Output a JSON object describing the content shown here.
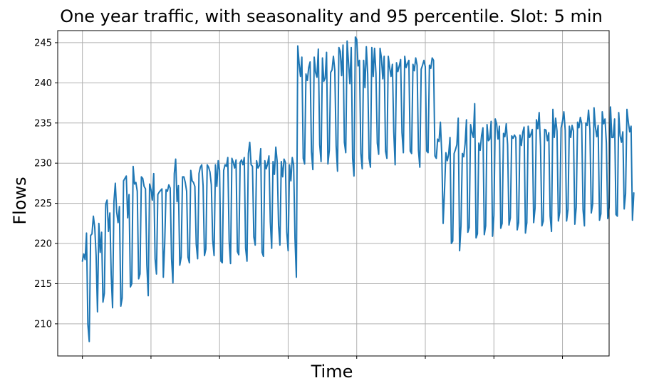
{
  "chart_data": {
    "type": "line",
    "title": "One year traffic, with seasonality and 95 percentile. Slot: 5 min",
    "xlabel": "Time",
    "ylabel": "Flows",
    "ylim": [
      206,
      246.5
    ],
    "xlim": [
      -18,
      384
    ],
    "yticks": [
      210,
      215,
      220,
      225,
      230,
      235,
      240,
      245
    ],
    "xgrid": [
      0,
      50,
      100,
      150,
      200,
      250,
      300,
      350
    ],
    "grid": true,
    "legend": "none",
    "series": [
      {
        "color": "#1f77b4",
        "values": [
          217.8,
          218.7,
          218,
          221.3,
          209.9,
          207.8,
          221,
          221.2,
          223.4,
          222,
          218.5,
          211.5,
          222.5,
          218.9,
          221.4,
          212.7,
          213.8,
          224.9,
          225.4,
          221.5,
          223.8,
          216.1,
          212,
          225.2,
          227.5,
          223.9,
          222.6,
          224.6,
          212.2,
          213.2,
          227.8,
          228.1,
          228.4,
          223.2,
          226.1,
          214.6,
          215,
          229.6,
          227.4,
          227.6,
          226.5,
          215.6,
          216.2,
          228.3,
          228.1,
          227.1,
          226.8,
          217.3,
          213.5,
          227.4,
          226.7,
          225.4,
          228.7,
          218.1,
          216.2,
          226.1,
          226.4,
          226.6,
          226.8,
          215.8,
          220,
          226.7,
          226.5,
          227.3,
          226.9,
          218.1,
          215.1,
          228.7,
          230.5,
          225.2,
          227.2,
          217.3,
          218.3,
          228.3,
          228.3,
          227.6,
          226.5,
          218.3,
          217.6,
          229.1,
          227.8,
          227.6,
          227.1,
          219.9,
          218.1,
          228.7,
          229.5,
          229.8,
          227.2,
          218.5,
          219.3,
          229.8,
          229.5,
          228.9,
          227.3,
          220.4,
          218.5,
          229.8,
          227.1,
          230.3,
          229.1,
          217.8,
          217.6,
          229.1,
          229.8,
          229.6,
          230.7,
          220.3,
          217.5,
          230.6,
          230.1,
          229.4,
          230.4,
          219,
          218.6,
          230.1,
          230.4,
          229.8,
          230.7,
          219.4,
          217.8,
          231.2,
          232.6,
          229.8,
          229.6,
          220.8,
          219.8,
          230.3,
          229.4,
          229.7,
          231.8,
          218.9,
          218.4,
          230.3,
          229.3,
          229.9,
          230.9,
          222.7,
          219.4,
          230.2,
          228.6,
          232,
          230.2,
          222.3,
          219.8,
          230.2,
          228.3,
          230.5,
          230.1,
          221.4,
          219.1,
          229.8,
          227.8,
          230.7,
          229.8,
          220.6,
          215.8,
          244.6,
          242.4,
          240.8,
          243.2,
          230.6,
          229.9,
          241.1,
          240.3,
          241.9,
          242.6,
          231.4,
          229.2,
          243.2,
          241.3,
          240.7,
          244.2,
          232.3,
          230.2,
          243.1,
          240.2,
          240.6,
          243.8,
          229.9,
          231.6,
          241.3,
          241.6,
          243.3,
          241.6,
          232.1,
          229,
          244.4,
          243.9,
          240.9,
          244.7,
          232.6,
          231.3,
          245.2,
          242.5,
          239.9,
          244.4,
          230.6,
          228.4,
          245.7,
          245.4,
          242.1,
          242.8,
          231.2,
          229.3,
          242.8,
          239.4,
          244.5,
          241.1,
          230.6,
          229.5,
          244.4,
          240.8,
          244.3,
          241.2,
          232.5,
          231.1,
          244.3,
          243.1,
          240.5,
          243.3,
          231.5,
          230.6,
          243.3,
          241.9,
          240.8,
          242.3,
          233.9,
          229.8,
          242.5,
          241.4,
          242.1,
          242.9,
          233.8,
          231.3,
          243.3,
          241.9,
          242.4,
          242.8,
          231.5,
          231.2,
          242.3,
          241.5,
          243.1,
          242.2,
          231.6,
          229.5,
          241.7,
          242.2,
          242.8,
          242,
          231.5,
          231.3,
          242.2,
          241.8,
          243.1,
          242.8,
          230.9,
          230.6,
          233,
          232.7,
          235.1,
          231.1,
          222.5,
          226.6,
          231.3,
          230.3,
          231.1,
          233.2,
          220,
          220.3,
          231.2,
          231.7,
          232.3,
          235.6,
          219.1,
          222.2,
          231.2,
          230.8,
          232.4,
          235.4,
          221.4,
          222,
          234.8,
          233.8,
          233.2,
          237.4,
          220.7,
          221.2,
          232.5,
          231.6,
          233.4,
          234.4,
          221.1,
          222.2,
          234.8,
          232.8,
          233,
          235.2,
          220.9,
          223.5,
          235.5,
          234.9,
          233,
          234.6,
          221.9,
          222.5,
          233.7,
          233.3,
          234.9,
          232.3,
          222.3,
          223.2,
          233.4,
          233.1,
          233.5,
          233.2,
          221.7,
          222.6,
          233.5,
          232.2,
          233.8,
          234.5,
          221.3,
          222.6,
          234.6,
          233.2,
          233.6,
          234.2,
          222.6,
          224.4,
          235.4,
          234.3,
          236.3,
          232.1,
          222.2,
          222.8,
          234.2,
          234.1,
          232.8,
          233.8,
          223.4,
          221.5,
          236.7,
          233.2,
          235.6,
          234,
          222.8,
          223.9,
          234.4,
          235.2,
          236.4,
          234.1,
          222.8,
          224.2,
          234.6,
          233.2,
          234.7,
          234,
          222.4,
          224.5,
          235.1,
          234.4,
          235.7,
          234.9,
          224.2,
          222.2,
          235,
          234.7,
          236.6,
          234.2,
          223.8,
          224.9,
          236.9,
          234.5,
          233.3,
          234.7,
          222.9,
          223.7,
          236.4,
          234.9,
          235.5,
          232.5,
          223.1,
          224.5,
          237,
          233.2,
          233.2,
          235.5,
          223.6,
          223.4,
          236.3,
          233.4,
          232.6,
          233.9,
          224.3,
          226.2,
          236.7,
          235.1,
          233.9,
          234.6,
          222.9,
          226.3
        ]
      }
    ]
  }
}
